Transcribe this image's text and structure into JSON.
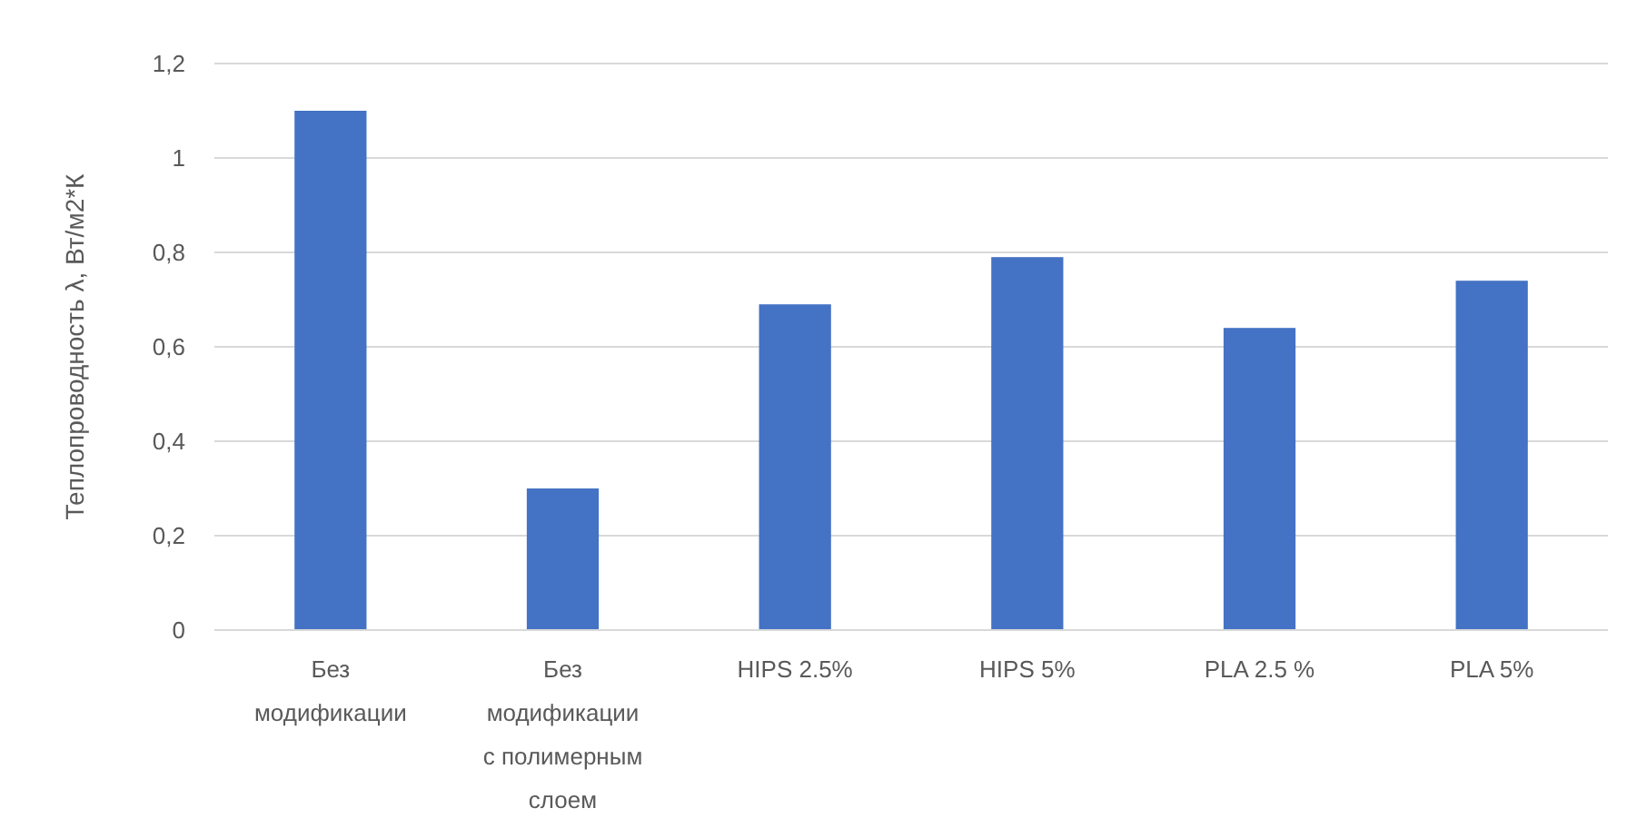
{
  "chart_data": {
    "type": "bar",
    "ylabel": "Теплопроводность  λ, Вт/м2*К",
    "categories": [
      "Без модификации",
      "Без модификации с полимерным слоем",
      "HIPS 2.5%",
      "HIPS 5%",
      "PLA 2.5 %",
      "PLA 5%"
    ],
    "values": [
      1.1,
      0.3,
      0.69,
      0.79,
      0.64,
      0.74
    ],
    "color": "#4472c4",
    "ylim": [
      0,
      1.2
    ],
    "yticks": [
      0,
      {
        "value": 0.2,
        "label": "0,2"
      },
      {
        "value": 0.4,
        "label": "0,4"
      },
      {
        "value": 0.6,
        "label": "0,6"
      },
      {
        "value": 0.8,
        "label": "0,8"
      },
      1,
      {
        "value": 1.2,
        "label": "1,2"
      }
    ],
    "grid": "y"
  }
}
